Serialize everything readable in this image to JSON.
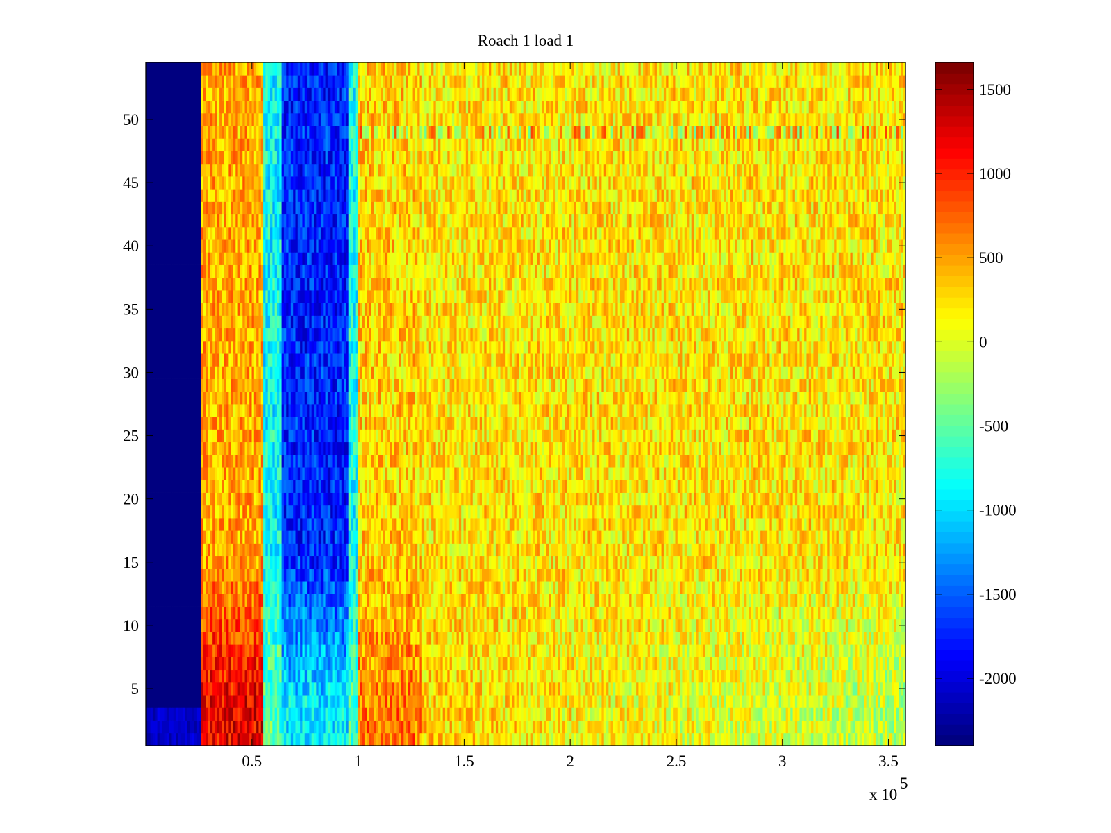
{
  "chart_data": {
    "type": "heatmap",
    "title": "Roach 1 load 1",
    "xlabel": "",
    "ylabel": "",
    "x_multiplier_label": "x 10",
    "x_multiplier_exponent": "5",
    "xlim": [
      0,
      358000
    ],
    "ylim": [
      0.5,
      54.5
    ],
    "rows": 54,
    "x_ticks": [
      50000,
      100000,
      150000,
      200000,
      250000,
      300000,
      350000
    ],
    "x_tick_labels": [
      "0.5",
      "1",
      "1.5",
      "2",
      "2.5",
      "3",
      "3.5"
    ],
    "y_ticks": [
      5,
      10,
      15,
      20,
      25,
      30,
      35,
      40,
      45,
      50
    ],
    "y_tick_labels": [
      "5",
      "10",
      "15",
      "20",
      "25",
      "30",
      "35",
      "40",
      "45",
      "50"
    ],
    "colormap": "jet",
    "clim": [
      -2400,
      1660
    ],
    "colorbar": {
      "ticks": [
        1500,
        1000,
        500,
        0,
        -500,
        -1000,
        -1500,
        -2000
      ],
      "tick_labels": [
        "1500",
        "1000",
        "500",
        "0",
        "-500",
        "-1000",
        "-1500",
        "-2000"
      ],
      "placement": "right"
    },
    "mean_profile_by_x": [
      {
        "x_from": 0,
        "x_to": 26000,
        "upper_rows": -2400,
        "lower_rows": -2100
      },
      {
        "x_from": 26000,
        "x_to": 55000,
        "upper_rows": 450,
        "lower_rows": 1200
      },
      {
        "x_from": 55000,
        "x_to": 64000,
        "upper_rows": -850,
        "lower_rows": -500
      },
      {
        "x_from": 64000,
        "x_to": 95000,
        "upper_rows": -1750,
        "lower_rows": -950
      },
      {
        "x_from": 95000,
        "x_to": 100000,
        "upper_rows": -800,
        "lower_rows": -600
      },
      {
        "x_from": 100000,
        "x_to": 130000,
        "upper_rows": 300,
        "lower_rows": 650
      },
      {
        "x_from": 130000,
        "x_to": 358000,
        "upper_rows": 220,
        "lower_rows": -100
      }
    ],
    "noise_amplitude": 380
  }
}
